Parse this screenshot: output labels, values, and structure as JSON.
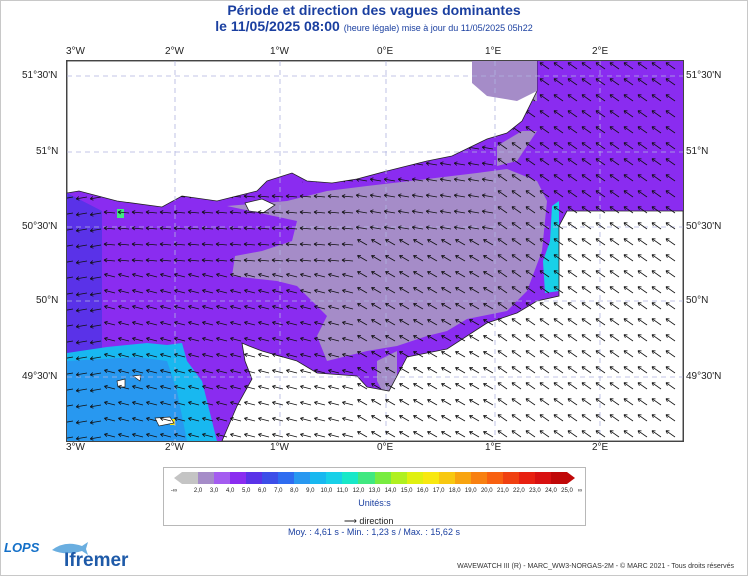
{
  "header": {
    "title": "Période et direction des vagues dominantes",
    "date_line": "le 11/05/2025 08:00",
    "update_note": "(heure légale) mise à jour du 11/05/2025 05h22"
  },
  "axes": {
    "lon_labels": [
      "3°W",
      "2°W",
      "1°W",
      "0°E",
      "1°E",
      "2°E"
    ],
    "lat_labels": [
      "51°30'N",
      "51°N",
      "50°30'N",
      "50°N",
      "49°30'N"
    ]
  },
  "legend": {
    "low_symbol": "-∞",
    "high_symbol": "∞",
    "values": [
      "2,0",
      "3,0",
      "4,0",
      "5,0",
      "6,0",
      "7,0",
      "8,0",
      "9,0",
      "10,0",
      "11,0",
      "12,0",
      "13,0",
      "14,0",
      "15,0",
      "16,0",
      "17,0",
      "18,0",
      "19,0",
      "20,0",
      "21,0",
      "22,0",
      "23,0",
      "24,0",
      "25,0"
    ],
    "colors": [
      "#c4c4c4",
      "#a58cc8",
      "#a45cf0",
      "#8a2cf0",
      "#5a32e8",
      "#3c4ee8",
      "#2e6cf0",
      "#2898f0",
      "#18b8f0",
      "#18d0e8",
      "#18e8c8",
      "#40e880",
      "#78ec40",
      "#b0f020",
      "#e0f010",
      "#f8e810",
      "#f8c810",
      "#f8a410",
      "#f88010",
      "#f86010",
      "#f04010",
      "#e82010",
      "#d81010",
      "#c00808"
    ],
    "units": "Unités:s",
    "direction_label": "direction"
  },
  "stats": {
    "text": "Moy. : 4,61 s   -   Min. : 1,23 s / Max. : 15,62 s"
  },
  "footer": {
    "credit": "WAVEWATCH III (R) - MARC_WW3-NORGAS-2M - © MARC 2021 - Tous droits réservés",
    "logo_left": "LOPS",
    "logo_right": "Ifremer"
  },
  "colors": {
    "title": "#1a3fa0",
    "land": "#ffffff",
    "grid": "#b0b4e0"
  }
}
